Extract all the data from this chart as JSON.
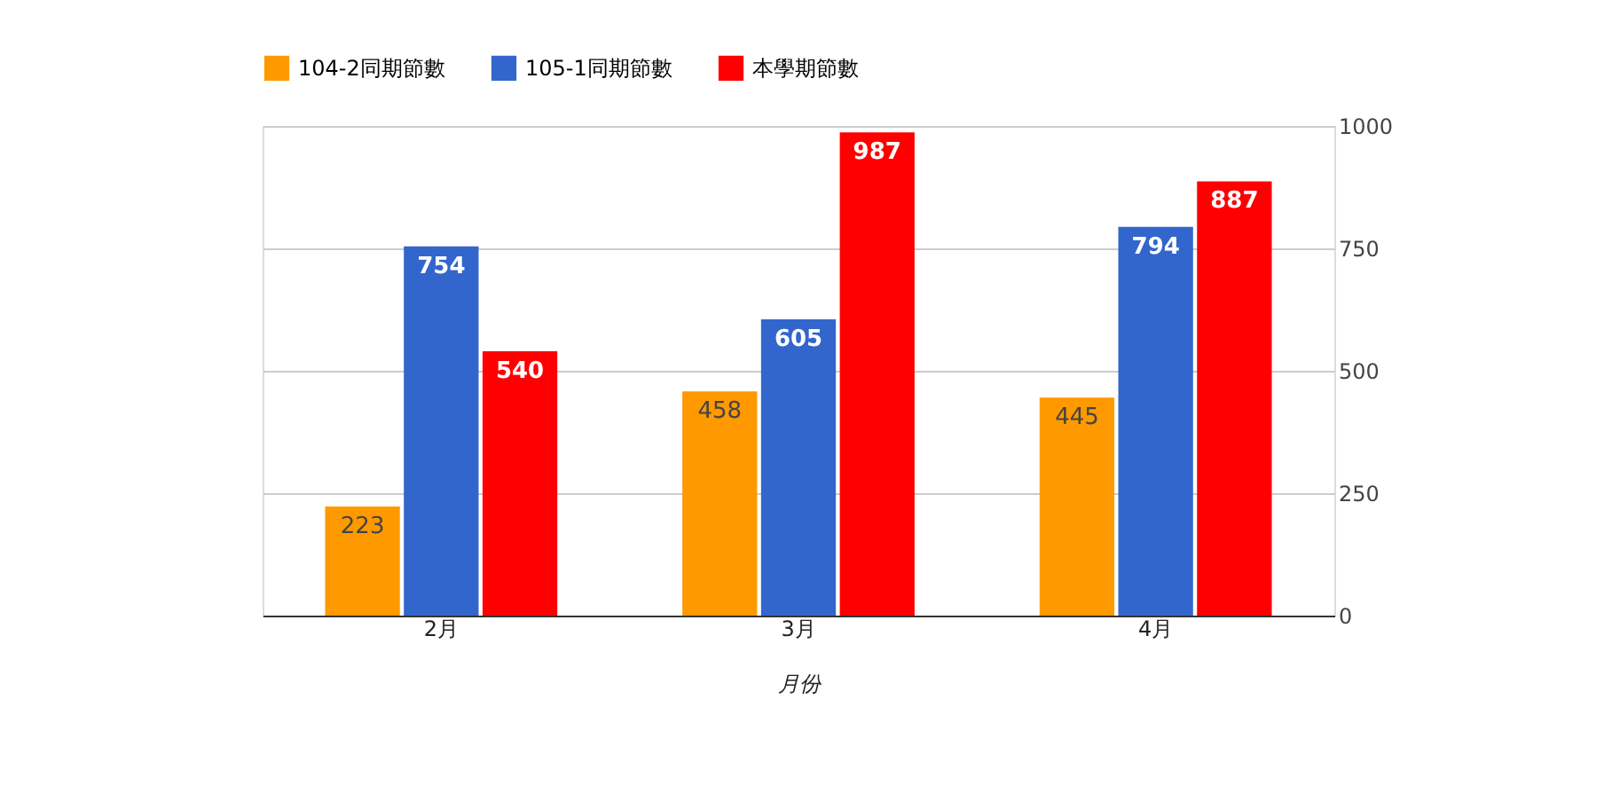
{
  "chart_data": {
    "type": "bar",
    "categories": [
      "2月",
      "3月",
      "4月"
    ],
    "xlabel": "月份",
    "series": [
      {
        "name": "104-2同期節數",
        "color": "#ff9900",
        "values": [
          223,
          458,
          445
        ]
      },
      {
        "name": "105-1同期節數",
        "color": "#3366cc",
        "values": [
          754,
          605,
          794
        ]
      },
      {
        "name": "本學期節數",
        "color": "#ff0000",
        "values": [
          540,
          987,
          887
        ]
      }
    ],
    "ylim": [
      0,
      1000
    ],
    "yticks": [
      0,
      250,
      500,
      750,
      1000
    ],
    "grid": "y",
    "legend": "top left",
    "data_labels": true
  }
}
